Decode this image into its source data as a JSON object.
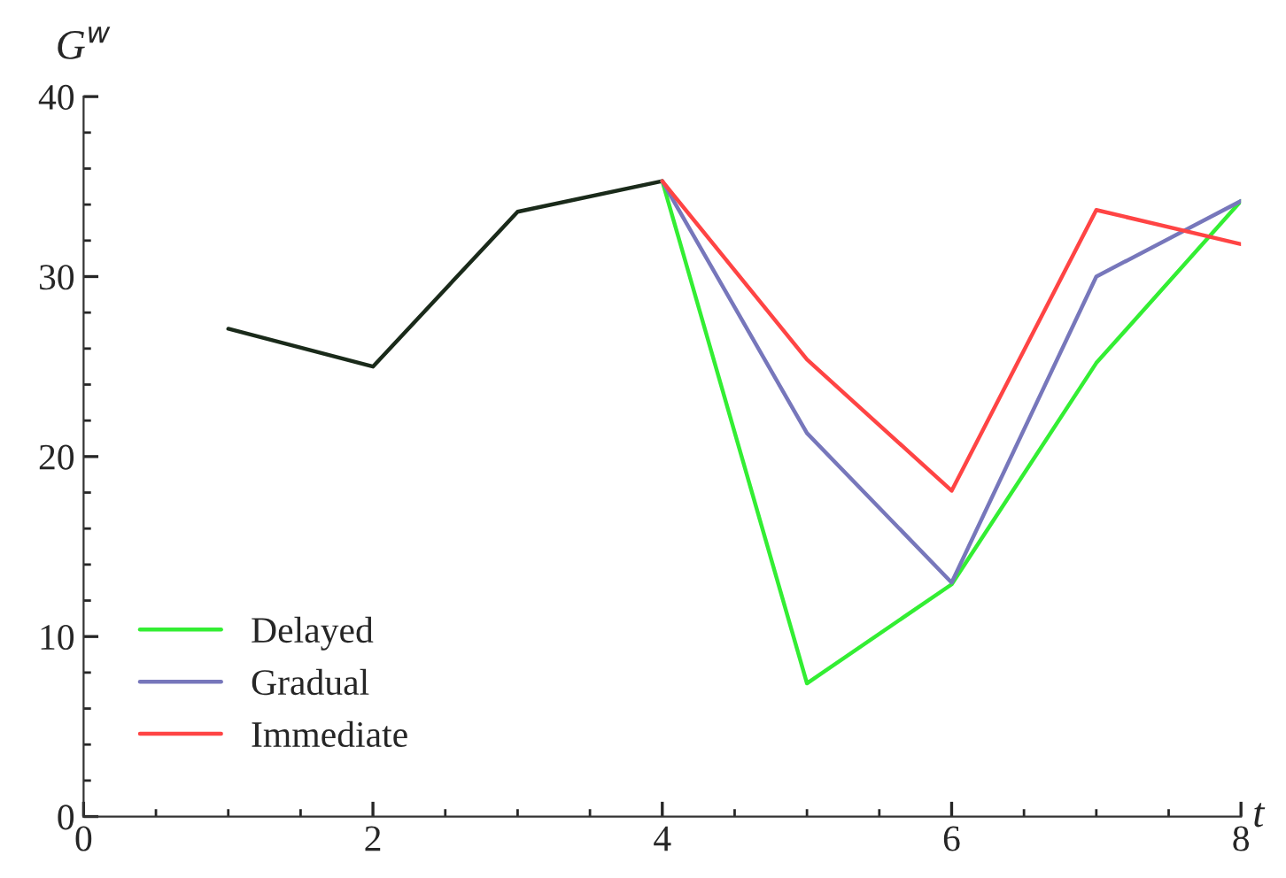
{
  "chart_data": {
    "type": "line",
    "xlabel": "t",
    "ylabel": "G$^{w}$",
    "xlim": [
      0,
      8
    ],
    "xticks": [
      0,
      2,
      4,
      6,
      8
    ],
    "ylim": [
      0,
      40
    ],
    "yticks": [
      0,
      10,
      20,
      30,
      40
    ],
    "grid": false,
    "legend": "bottom left",
    "marker": "none",
    "line_style": "solid",
    "series": [
      {
        "color": "#1a2a1a",
        "x": [
          1,
          2,
          3,
          4
        ],
        "values": [
          27.1,
          25.0,
          33.6,
          35.3
        ]
      },
      {
        "name": "Delayed",
        "color": "#33ee33",
        "x": [
          4,
          5,
          6,
          7,
          8
        ],
        "values": [
          35.3,
          7.4,
          12.9,
          25.2,
          34.2
        ]
      },
      {
        "name": "Gradual",
        "color": "#7777bb",
        "x": [
          4,
          5,
          6,
          7,
          8
        ],
        "values": [
          35.3,
          21.3,
          13.0,
          30.0,
          34.2
        ]
      },
      {
        "name": "Immediate",
        "color": "#ff4444",
        "x": [
          4,
          5,
          6,
          7,
          8
        ],
        "values": [
          35.3,
          25.4,
          18.1,
          33.7,
          31.8
        ]
      }
    ]
  }
}
